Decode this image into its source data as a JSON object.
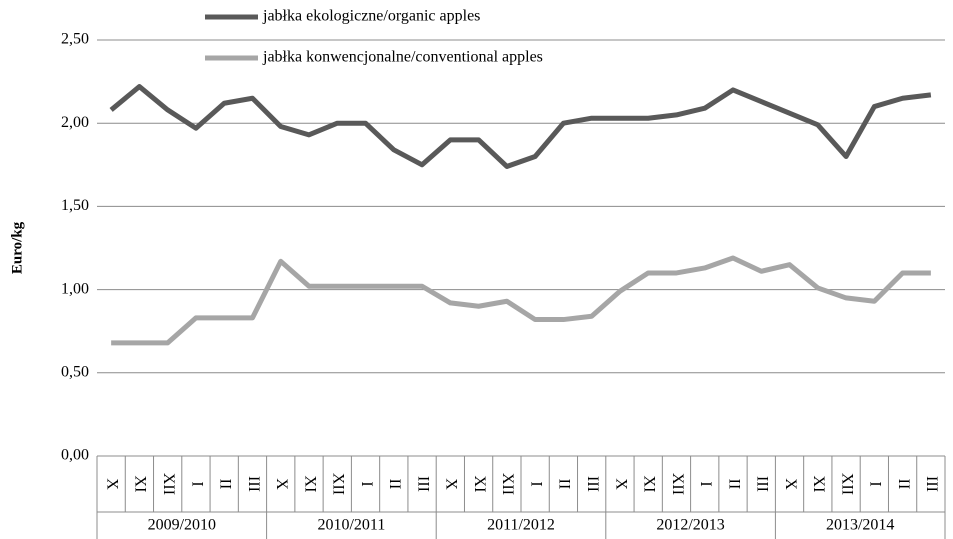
{
  "chart_data": {
    "type": "line",
    "ylabel": "Euro/kg",
    "categories": [
      "X",
      "XI",
      "XII",
      "I",
      "II",
      "III",
      "X",
      "XI",
      "XII",
      "I",
      "II",
      "III",
      "X",
      "XI",
      "XII",
      "I",
      "II",
      "III",
      "X",
      "XI",
      "XII",
      "I",
      "II",
      "III",
      "X",
      "XI",
      "XII",
      "I",
      "II",
      "III"
    ],
    "groups": [
      "2009/2010",
      "2010/2011",
      "2011/2012",
      "2012/2013",
      "2013/2014"
    ],
    "series": [
      {
        "name": "jabłka ekologiczne/organic apples",
        "color": "#595959",
        "values": [
          2.08,
          2.22,
          2.08,
          1.97,
          2.12,
          2.15,
          1.98,
          1.93,
          2.0,
          2.0,
          1.84,
          1.75,
          1.9,
          1.9,
          1.74,
          1.8,
          2.0,
          2.03,
          2.03,
          2.03,
          2.05,
          2.09,
          2.2,
          2.13,
          2.06,
          1.99,
          1.8,
          2.1,
          2.15,
          2.17
        ]
      },
      {
        "name": "jabłka konwencjonalne/conventional apples",
        "color": "#a6a6a6",
        "values": [
          0.68,
          0.68,
          0.68,
          0.83,
          0.83,
          0.83,
          1.17,
          1.02,
          1.02,
          1.02,
          1.02,
          1.02,
          0.92,
          0.9,
          0.93,
          0.82,
          0.82,
          0.84,
          0.99,
          1.1,
          1.1,
          1.13,
          1.19,
          1.11,
          1.15,
          1.01,
          0.95,
          0.93,
          1.1,
          1.1
        ]
      }
    ],
    "ylim": [
      0,
      2.5
    ],
    "yticks": [
      {
        "value": 0,
        "label": "0,00"
      },
      {
        "value": 0.5,
        "label": "0,50"
      },
      {
        "value": 1,
        "label": "1,00"
      },
      {
        "value": 1.5,
        "label": "1,50"
      },
      {
        "value": 2,
        "label": "2,00"
      },
      {
        "value": 2.5,
        "label": "2,50"
      }
    ],
    "grid": true
  }
}
